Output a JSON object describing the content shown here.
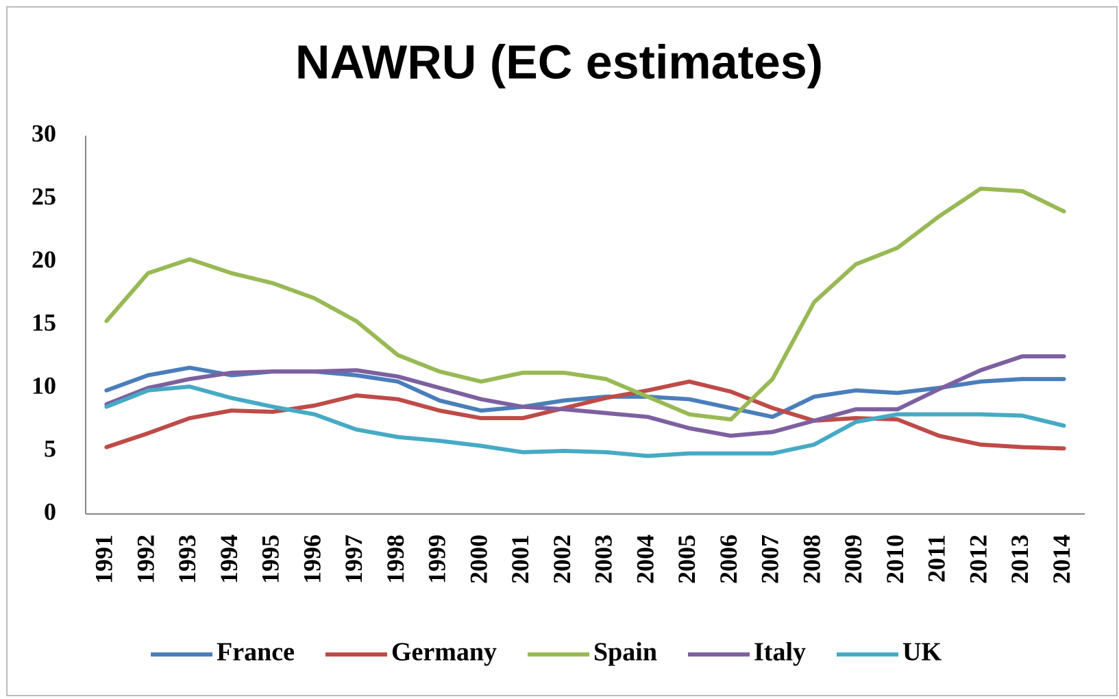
{
  "chart_data": {
    "type": "line",
    "title": "NAWRU (EC estimates)",
    "categories": [
      "1991",
      "1992",
      "1993",
      "1994",
      "1995",
      "1996",
      "1997",
      "1998",
      "1999",
      "2000",
      "2001",
      "2002",
      "2003",
      "2004",
      "2005",
      "2006",
      "2007",
      "2008",
      "2009",
      "2010",
      "2011",
      "2012",
      "2013",
      "2014"
    ],
    "series": [
      {
        "name": "France",
        "color": "#4a7ebb",
        "values": [
          9.8,
          11.0,
          11.6,
          11.0,
          11.3,
          11.3,
          11.0,
          10.5,
          9.0,
          8.2,
          8.5,
          9.0,
          9.3,
          9.3,
          9.1,
          8.4,
          7.7,
          9.3,
          9.8,
          9.6,
          10.0,
          10.5,
          10.7,
          10.7
        ]
      },
      {
        "name": "Germany",
        "color": "#be4b48",
        "values": [
          5.3,
          6.4,
          7.6,
          8.2,
          8.1,
          8.6,
          9.4,
          9.1,
          8.2,
          7.6,
          7.6,
          8.4,
          9.2,
          9.8,
          10.5,
          9.7,
          8.4,
          7.4,
          7.6,
          7.5,
          6.2,
          5.5,
          5.3,
          5.2
        ]
      },
      {
        "name": "Spain",
        "color": "#98b954",
        "values": [
          15.3,
          19.1,
          20.2,
          19.1,
          18.3,
          17.1,
          15.3,
          12.6,
          11.3,
          10.5,
          11.2,
          11.2,
          10.7,
          9.3,
          7.9,
          7.5,
          10.7,
          16.8,
          19.8,
          21.1,
          23.6,
          25.8,
          25.6,
          24.0
        ]
      },
      {
        "name": "Italy",
        "color": "#7d60a0",
        "values": [
          8.7,
          10.0,
          10.7,
          11.2,
          11.3,
          11.3,
          11.4,
          10.9,
          10.0,
          9.1,
          8.5,
          8.3,
          8.0,
          7.7,
          6.8,
          6.2,
          6.5,
          7.4,
          8.3,
          8.3,
          9.9,
          11.4,
          12.5,
          12.5
        ]
      },
      {
        "name": "UK",
        "color": "#46aac5",
        "values": [
          8.5,
          9.8,
          10.1,
          9.2,
          8.5,
          7.9,
          6.7,
          6.1,
          5.8,
          5.4,
          4.9,
          5.0,
          4.9,
          4.6,
          4.8,
          4.8,
          4.8,
          5.5,
          7.3,
          7.9,
          7.9,
          7.9,
          7.8,
          7.0
        ]
      }
    ],
    "ylim": [
      0,
      30
    ],
    "yticks": [
      0,
      5,
      10,
      15,
      20,
      25,
      30
    ],
    "grid": false,
    "legend": "bottom"
  }
}
